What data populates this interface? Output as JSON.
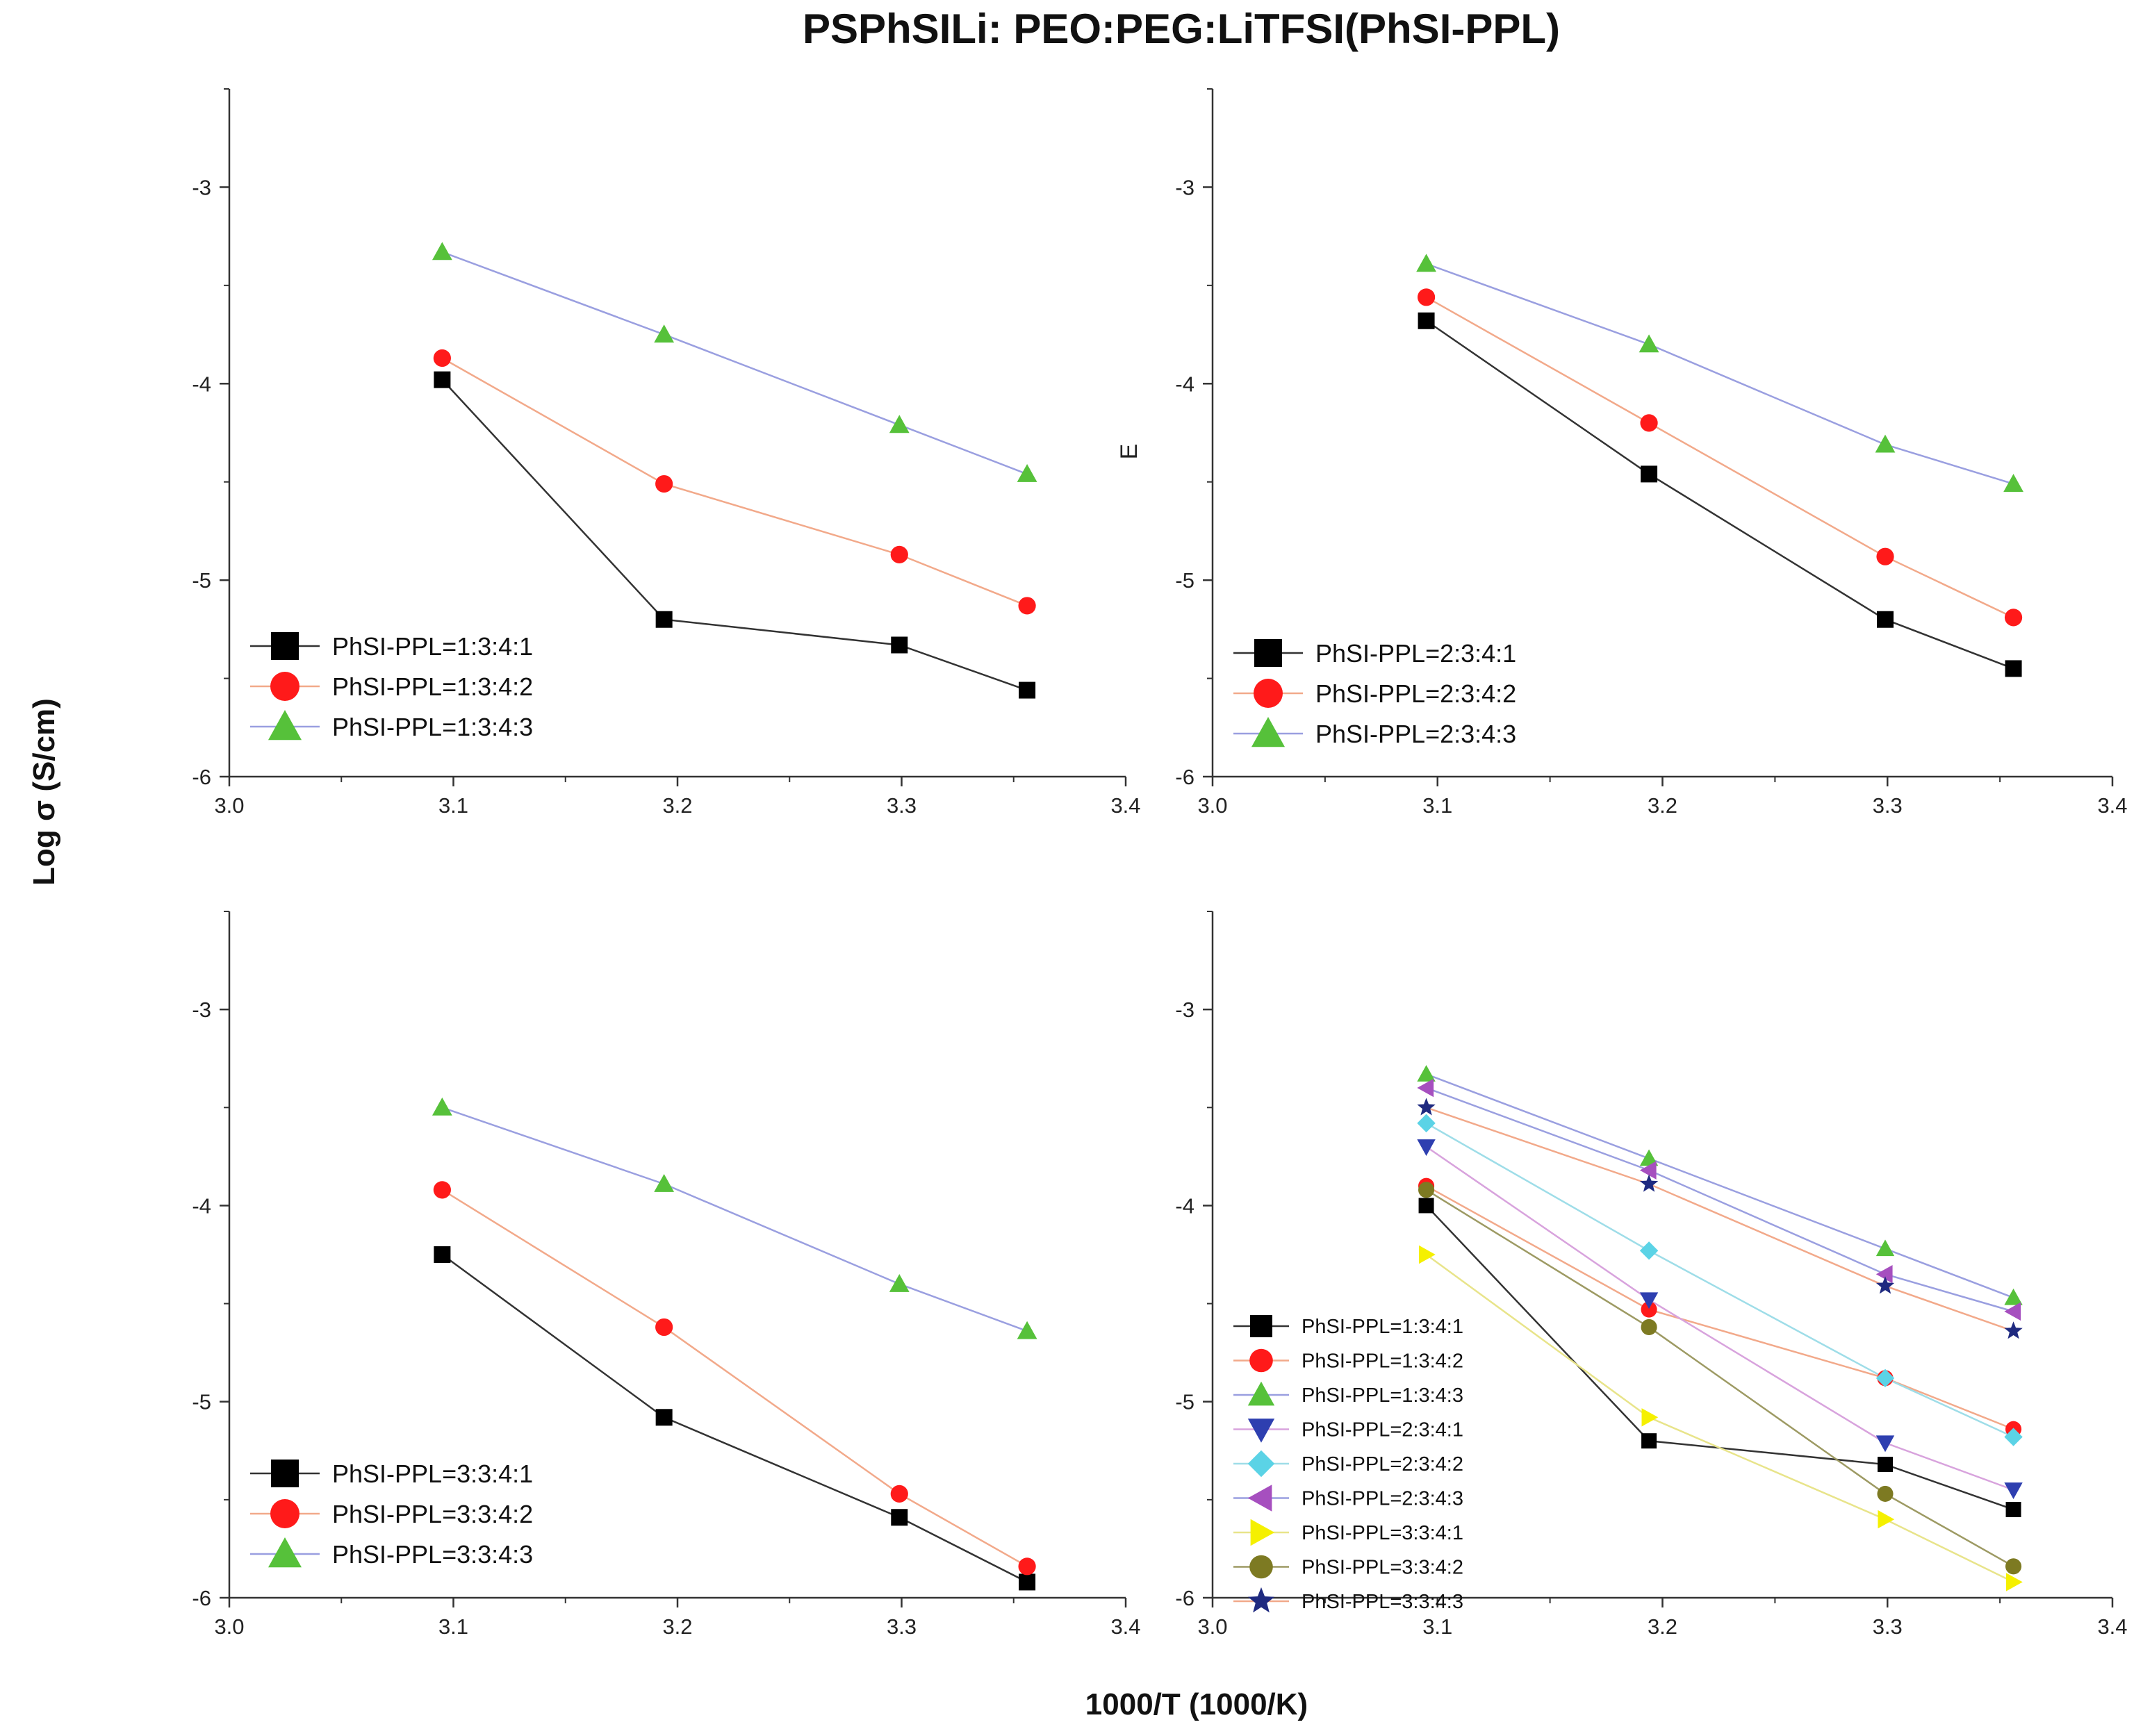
{
  "title": "PSPhSILi: PEO:PEG:LiTFSI(PhSI-PPL)",
  "xlabel": "1000/T (1000/K)",
  "ylabel": "Log σ (S/cm)",
  "stray_label": "E",
  "colors": {
    "black": "#000000",
    "red": "#ff1a1a",
    "green": "#56c13a",
    "blue": "#2e3fb0",
    "cyan": "#5bd3e6",
    "purple": "#a64fbf",
    "yellow": "#f5f000",
    "olive": "#7d7a22",
    "navy": "#1f2a80",
    "line_black": "#333333",
    "line_red": "#f2a98a",
    "line_blue": "#9a9fe0",
    "line_pink": "#d8a3dd",
    "line_cyan": "#9edde8",
    "line_yellow": "#e8e48a",
    "line_olive": "#9d9a63"
  },
  "chart_data": [
    {
      "type": "line",
      "panel": "top-left",
      "xlim": [
        3.0,
        3.4
      ],
      "ylim": [
        -6,
        -2.5
      ],
      "xticks": [
        "3.0",
        "3.1",
        "3.2",
        "3.3",
        "3.4"
      ],
      "yticks": [
        "-3",
        "-4",
        "-5",
        "-6"
      ],
      "x": [
        3.095,
        3.194,
        3.299,
        3.356
      ],
      "legend_position": "bottom-left",
      "series": [
        {
          "name": "PhSI-PPL=1:3:4:1",
          "marker": "square",
          "color": "black",
          "line": "line_black",
          "values": [
            -3.98,
            -5.2,
            -5.33,
            -5.56
          ]
        },
        {
          "name": "PhSI-PPL=1:3:4:2",
          "marker": "circle",
          "color": "red",
          "line": "line_red",
          "values": [
            -3.87,
            -4.51,
            -4.87,
            -5.13
          ]
        },
        {
          "name": "PhSI-PPL=1:3:4:3",
          "marker": "triangle-up",
          "color": "green",
          "line": "line_blue",
          "values": [
            -3.33,
            -3.75,
            -4.21,
            -4.46
          ]
        }
      ]
    },
    {
      "type": "line",
      "panel": "top-right",
      "xlim": [
        3.0,
        3.4
      ],
      "ylim": [
        -6,
        -2.5
      ],
      "xticks": [
        "3.0",
        "3.1",
        "3.2",
        "3.3",
        "3.4"
      ],
      "yticks": [
        "-3",
        "-4",
        "-5",
        "-6"
      ],
      "x": [
        3.095,
        3.194,
        3.299,
        3.356
      ],
      "legend_position": "bottom-left",
      "series": [
        {
          "name": "PhSI-PPL=2:3:4:1",
          "marker": "square",
          "color": "black",
          "line": "line_black",
          "values": [
            -3.68,
            -4.46,
            -5.2,
            -5.45
          ]
        },
        {
          "name": "PhSI-PPL=2:3:4:2",
          "marker": "circle",
          "color": "red",
          "line": "line_red",
          "values": [
            -3.56,
            -4.2,
            -4.88,
            -5.19
          ]
        },
        {
          "name": "PhSI-PPL=2:3:4:3",
          "marker": "triangle-up",
          "color": "green",
          "line": "line_blue",
          "values": [
            -3.39,
            -3.8,
            -4.31,
            -4.51
          ]
        }
      ]
    },
    {
      "type": "line",
      "panel": "bottom-left",
      "xlim": [
        3.0,
        3.4
      ],
      "ylim": [
        -6,
        -2.5
      ],
      "xticks": [
        "3.0",
        "3.1",
        "3.2",
        "3.3",
        "3.4"
      ],
      "yticks": [
        "-3",
        "-4",
        "-5",
        "-6"
      ],
      "x": [
        3.095,
        3.194,
        3.299,
        3.356
      ],
      "legend_position": "bottom-left",
      "series": [
        {
          "name": "PhSI-PPL=3:3:4:1",
          "marker": "square",
          "color": "black",
          "line": "line_black",
          "values": [
            -4.25,
            -5.08,
            -5.59,
            -5.92
          ]
        },
        {
          "name": "PhSI-PPL=3:3:4:2",
          "marker": "circle",
          "color": "red",
          "line": "line_red",
          "values": [
            -3.92,
            -4.62,
            -5.47,
            -5.84
          ]
        },
        {
          "name": "PhSI-PPL=3:3:4:3",
          "marker": "triangle-up",
          "color": "green",
          "line": "line_blue",
          "values": [
            -3.5,
            -3.89,
            -4.4,
            -4.64
          ]
        }
      ]
    },
    {
      "type": "line",
      "panel": "bottom-right",
      "xlim": [
        3.0,
        3.4
      ],
      "ylim": [
        -6,
        -2.5
      ],
      "xticks": [
        "3.0",
        "3.1",
        "3.2",
        "3.3",
        "3.4"
      ],
      "yticks": [
        "-3",
        "-4",
        "-5",
        "-6"
      ],
      "x": [
        3.095,
        3.194,
        3.299,
        3.356
      ],
      "legend_position": "bottom-left",
      "series": [
        {
          "name": "PhSI-PPL=1:3:4:1",
          "marker": "square",
          "color": "black",
          "line": "line_black",
          "values": [
            -4.0,
            -5.2,
            -5.32,
            -5.55
          ]
        },
        {
          "name": "PhSI-PPL=1:3:4:2",
          "marker": "circle",
          "color": "red",
          "line": "line_red",
          "values": [
            -3.9,
            -4.53,
            -4.88,
            -5.14
          ]
        },
        {
          "name": "PhSI-PPL=1:3:4:3",
          "marker": "triangle-up",
          "color": "green",
          "line": "line_blue",
          "values": [
            -3.33,
            -3.76,
            -4.22,
            -4.47
          ]
        },
        {
          "name": "PhSI-PPL=2:3:4:1",
          "marker": "triangle-down",
          "color": "blue",
          "line": "line_pink",
          "values": [
            -3.7,
            -4.48,
            -5.21,
            -5.45
          ]
        },
        {
          "name": "PhSI-PPL=2:3:4:2",
          "marker": "diamond",
          "color": "cyan",
          "line": "line_cyan",
          "values": [
            -3.58,
            -4.23,
            -4.88,
            -5.18
          ]
        },
        {
          "name": "PhSI-PPL=2:3:4:3",
          "marker": "triangle-left",
          "color": "purple",
          "line": "line_blue",
          "values": [
            -3.4,
            -3.82,
            -4.35,
            -4.54
          ]
        },
        {
          "name": "PhSI-PPL=3:3:4:1",
          "marker": "triangle-right",
          "color": "yellow",
          "line": "line_yellow",
          "values": [
            -4.25,
            -5.08,
            -5.6,
            -5.92
          ]
        },
        {
          "name": "PhSI-PPL=3:3:4:2",
          "marker": "circle",
          "color": "olive",
          "line": "line_olive",
          "values": [
            -3.92,
            -4.62,
            -5.47,
            -5.84
          ]
        },
        {
          "name": "PhSI-PPL=3:3:4:3",
          "marker": "star",
          "color": "navy",
          "line": "line_red",
          "values": [
            -3.5,
            -3.89,
            -4.41,
            -4.64
          ]
        }
      ]
    }
  ]
}
